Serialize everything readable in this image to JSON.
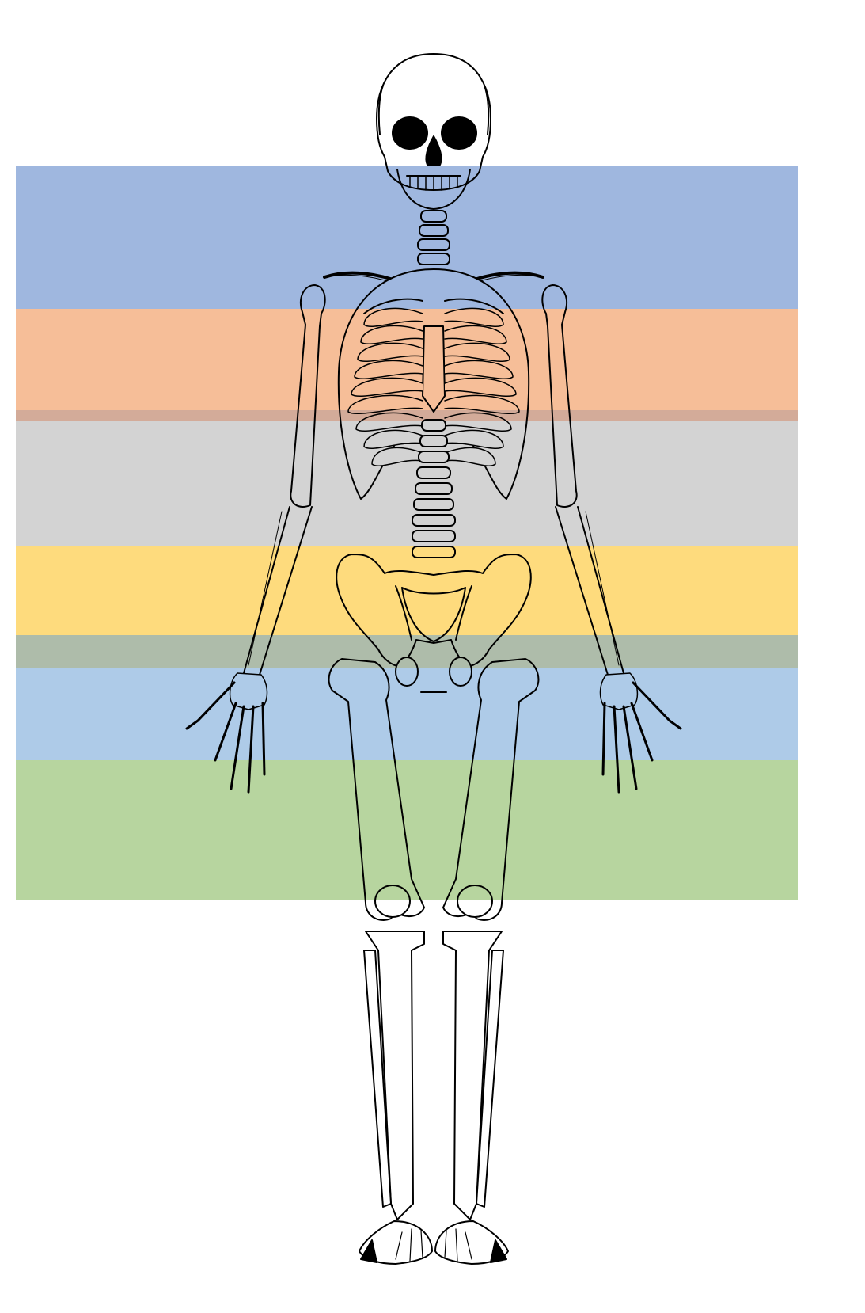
{
  "figure": {
    "subject": "skeleton-front-view",
    "line_color": "#000000",
    "bone_fill": "#ffffff"
  },
  "bands": [
    {
      "name": "band-blue",
      "color": "#9fb7df",
      "opacity": 1
    },
    {
      "name": "band-orange",
      "color": "#f6be98",
      "opacity": 1
    },
    {
      "name": "band-orange-gray-overlap",
      "color": "#d3ab99",
      "opacity": 1
    },
    {
      "name": "band-gray",
      "color": "#d3d3d3",
      "opacity": 1
    },
    {
      "name": "band-yellow",
      "color": "#fedb7d",
      "opacity": 1
    },
    {
      "name": "band-gray-green",
      "color": "#aebcaa",
      "opacity": 1
    },
    {
      "name": "band-light-blue",
      "color": "#aecbe8",
      "opacity": 1
    },
    {
      "name": "band-green",
      "color": "#b7d59f",
      "opacity": 1
    }
  ]
}
